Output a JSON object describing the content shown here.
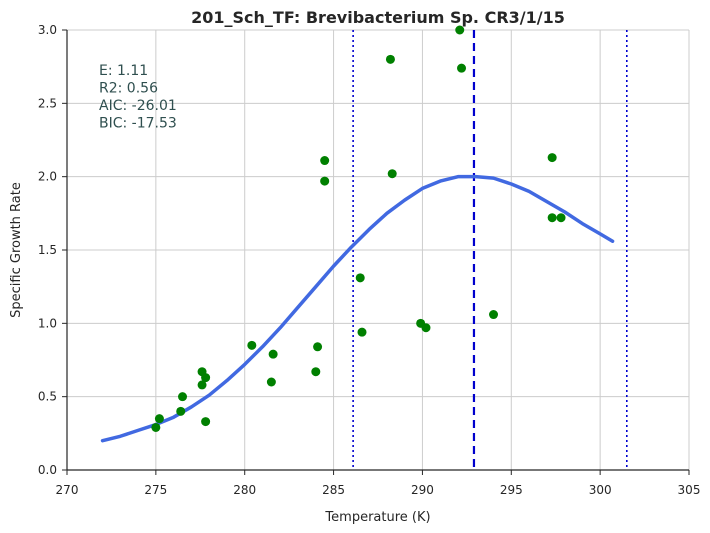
{
  "chart_data": {
    "type": "scatter",
    "title": "201_Sch_TF: Brevibacterium Sp. CR3/1/15",
    "xlabel": "Temperature (K)",
    "ylabel": "Specific Growth Rate",
    "xlim": [
      270,
      305
    ],
    "ylim": [
      0.0,
      3.0
    ],
    "x_ticks": [
      "270",
      "275",
      "280",
      "285",
      "290",
      "295",
      "300",
      "305"
    ],
    "y_ticks": [
      "0.0",
      "0.5",
      "1.0",
      "1.5",
      "2.0",
      "2.5",
      "3.0"
    ],
    "grid": true,
    "stats": [
      {
        "label": "E:",
        "value": "1.11"
      },
      {
        "label": "R2:",
        "value": "0.56"
      },
      {
        "label": "AIC:",
        "value": "-26.01"
      },
      {
        "label": "BIC:",
        "value": "-17.53"
      }
    ],
    "point_color": "#008000",
    "points": [
      {
        "x": 275.0,
        "y": 0.29
      },
      {
        "x": 275.2,
        "y": 0.35
      },
      {
        "x": 276.4,
        "y": 0.4
      },
      {
        "x": 276.5,
        "y": 0.5
      },
      {
        "x": 277.6,
        "y": 0.58
      },
      {
        "x": 277.6,
        "y": 0.67
      },
      {
        "x": 277.8,
        "y": 0.63
      },
      {
        "x": 277.8,
        "y": 0.33
      },
      {
        "x": 280.4,
        "y": 0.85
      },
      {
        "x": 281.5,
        "y": 0.6
      },
      {
        "x": 281.6,
        "y": 0.79
      },
      {
        "x": 284.0,
        "y": 0.67
      },
      {
        "x": 284.1,
        "y": 0.84
      },
      {
        "x": 284.5,
        "y": 1.97
      },
      {
        "x": 284.5,
        "y": 2.11
      },
      {
        "x": 286.5,
        "y": 1.31
      },
      {
        "x": 286.6,
        "y": 0.94
      },
      {
        "x": 288.2,
        "y": 2.8
      },
      {
        "x": 288.3,
        "y": 2.02
      },
      {
        "x": 289.9,
        "y": 1.0
      },
      {
        "x": 290.2,
        "y": 0.97
      },
      {
        "x": 292.1,
        "y": 3.0
      },
      {
        "x": 292.2,
        "y": 2.74
      },
      {
        "x": 294.0,
        "y": 1.06
      },
      {
        "x": 297.3,
        "y": 2.13
      },
      {
        "x": 297.3,
        "y": 1.72
      },
      {
        "x": 297.8,
        "y": 1.72
      }
    ],
    "fit_curve": {
      "color": "#4169e1",
      "x": [
        272.0,
        273.0,
        274.0,
        275.0,
        276.0,
        277.0,
        278.0,
        279.0,
        280.0,
        281.0,
        282.0,
        283.0,
        284.0,
        285.0,
        286.0,
        287.0,
        288.0,
        289.0,
        290.0,
        291.0,
        292.0,
        293.0,
        294.0,
        295.0,
        296.0,
        297.0,
        298.0,
        299.0,
        300.0,
        300.7
      ],
      "y": [
        0.2,
        0.23,
        0.27,
        0.31,
        0.36,
        0.43,
        0.51,
        0.61,
        0.72,
        0.84,
        0.97,
        1.11,
        1.25,
        1.39,
        1.52,
        1.64,
        1.75,
        1.84,
        1.92,
        1.97,
        2.0,
        2.0,
        1.99,
        1.95,
        1.9,
        1.83,
        1.76,
        1.68,
        1.61,
        1.56
      ]
    },
    "vlines": [
      {
        "x": 286.1,
        "style": "dotted",
        "color": "#0000cd"
      },
      {
        "x": 292.9,
        "style": "dashed",
        "color": "#0000cd"
      },
      {
        "x": 301.5,
        "style": "dotted",
        "color": "#0000cd"
      }
    ]
  }
}
